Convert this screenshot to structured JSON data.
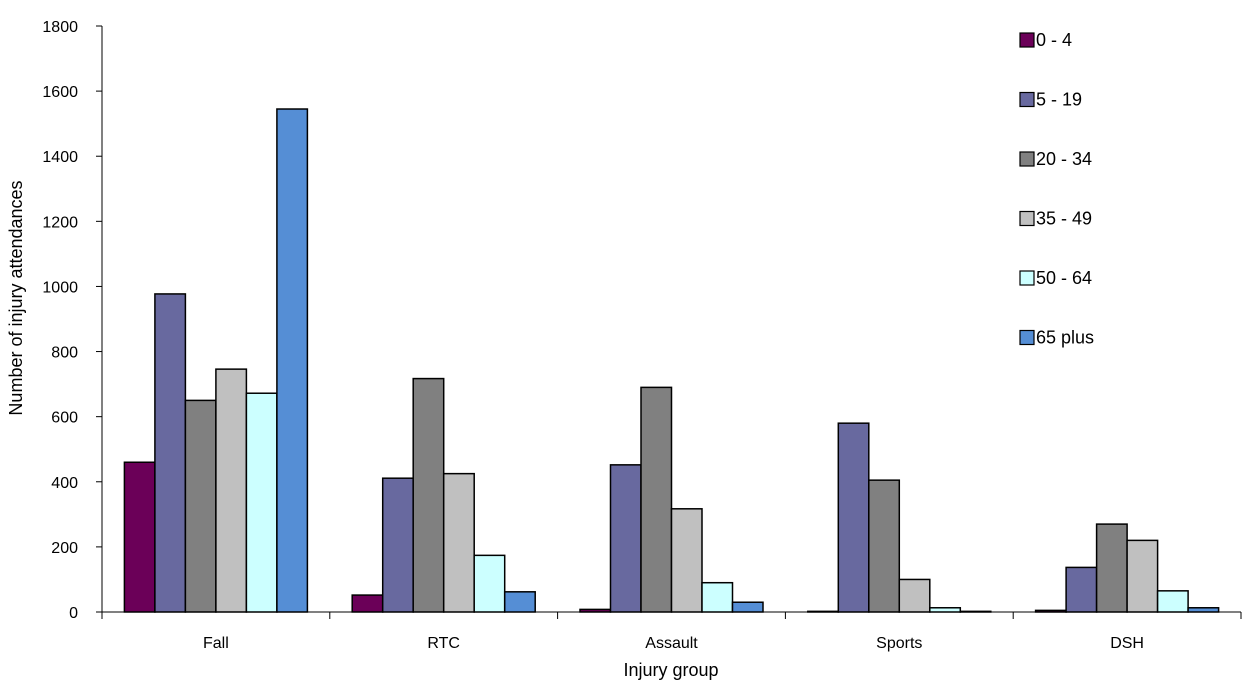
{
  "chart_data": {
    "type": "bar",
    "title": "",
    "xlabel": "Injury group",
    "ylabel": "Number of injury attendances",
    "categories": [
      "Fall",
      "RTC",
      "Assault",
      "Sports",
      "DSH"
    ],
    "ylim": [
      0,
      1800
    ],
    "yticks": [
      "0",
      "200",
      "400",
      "600",
      "800",
      "1000",
      "1200",
      "1400",
      "1600",
      "1800"
    ],
    "grid": false,
    "legend_position": "right",
    "series": [
      {
        "name": "0 - 4",
        "color": "#6B0058",
        "values": [
          460,
          52,
          8,
          2,
          5
        ]
      },
      {
        "name": "5 - 19",
        "color": "#68699F",
        "values": [
          977,
          411,
          452,
          580,
          137
        ]
      },
      {
        "name": "20 - 34",
        "color": "#808080",
        "values": [
          650,
          717,
          690,
          405,
          270
        ]
      },
      {
        "name": "35 - 49",
        "color": "#C0C0C0",
        "values": [
          746,
          425,
          317,
          100,
          220
        ]
      },
      {
        "name": "50 - 64",
        "color": "#CCFFFF",
        "values": [
          672,
          174,
          90,
          13,
          65
        ]
      },
      {
        "name": "65 plus",
        "color": "#558ED5",
        "values": [
          1545,
          62,
          30,
          2,
          13
        ]
      }
    ]
  }
}
